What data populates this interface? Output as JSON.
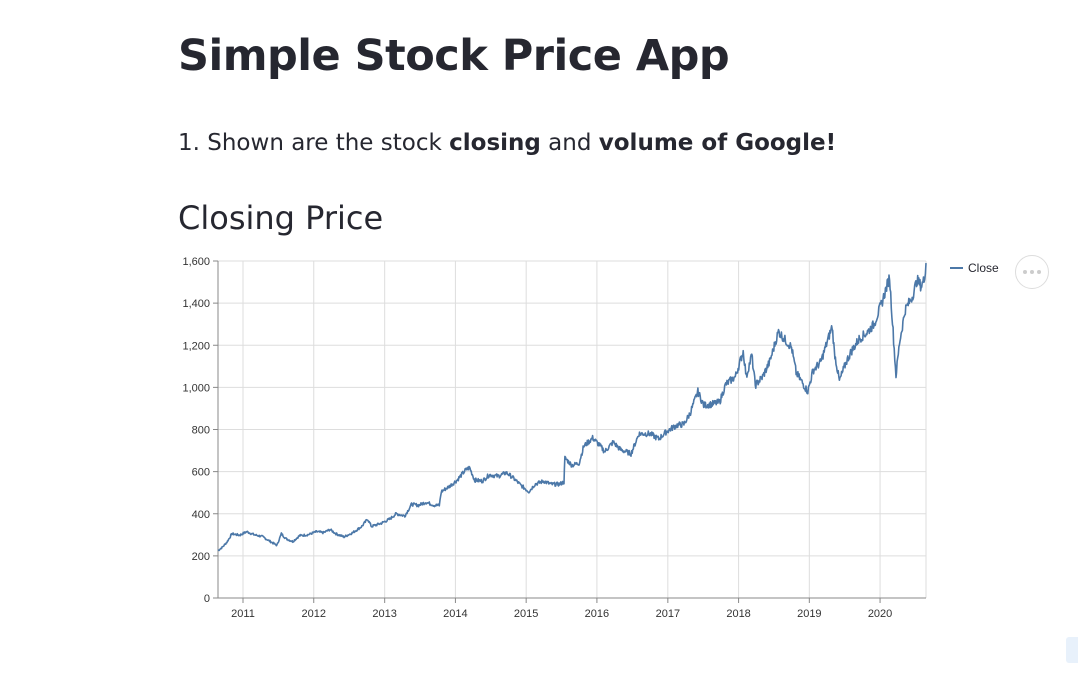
{
  "app": {
    "title": "Simple Stock Price App",
    "intro": {
      "prefix": "1. Shown are the stock ",
      "bold1": "closing",
      "middle": " and ",
      "bold2": "volume of Google!"
    },
    "subheader": "Closing Price"
  },
  "icons": {
    "actions_menu": "ellipsis-icon"
  },
  "colors": {
    "line": "#4c78a8",
    "text": "#262730",
    "grid": "#dddddd",
    "axis": "#888888"
  },
  "chart_data": {
    "type": "line",
    "title": "",
    "xlabel": "",
    "ylabel": "",
    "ylim": [
      0,
      1600
    ],
    "xlim": [
      "2010-08-25",
      "2020-08-25"
    ],
    "yticks": [
      0,
      200,
      400,
      600,
      800,
      1000,
      1200,
      1400,
      1600
    ],
    "ytick_labels": [
      "0",
      "200",
      "400",
      "600",
      "800",
      "1,000",
      "1,200",
      "1,400",
      "1,600"
    ],
    "xticks": [
      "2011",
      "2012",
      "2013",
      "2014",
      "2015",
      "2016",
      "2017",
      "2018",
      "2019",
      "2020"
    ],
    "grid": true,
    "legend_position": "top-right",
    "series": [
      {
        "name": "Close",
        "points": [
          [
            "2010-08-25",
            225
          ],
          [
            "2010-09-15",
            240
          ],
          [
            "2010-10-10",
            265
          ],
          [
            "2010-11-05",
            305
          ],
          [
            "2010-12-15",
            298
          ],
          [
            "2011-01-20",
            315
          ],
          [
            "2011-03-01",
            300
          ],
          [
            "2011-04-10",
            292
          ],
          [
            "2011-05-15",
            272
          ],
          [
            "2011-06-25",
            250
          ],
          [
            "2011-07-18",
            305
          ],
          [
            "2011-08-10",
            282
          ],
          [
            "2011-09-15",
            268
          ],
          [
            "2011-10-20",
            296
          ],
          [
            "2011-12-01",
            300
          ],
          [
            "2012-01-15",
            315
          ],
          [
            "2012-02-20",
            310
          ],
          [
            "2012-03-25",
            325
          ],
          [
            "2012-04-25",
            305
          ],
          [
            "2012-06-05",
            290
          ],
          [
            "2012-07-20",
            310
          ],
          [
            "2012-09-05",
            340
          ],
          [
            "2012-10-05",
            375
          ],
          [
            "2012-10-25",
            340
          ],
          [
            "2012-12-15",
            355
          ],
          [
            "2013-01-28",
            375
          ],
          [
            "2013-03-01",
            400
          ],
          [
            "2013-04-15",
            390
          ],
          [
            "2013-05-20",
            445
          ],
          [
            "2013-06-25",
            440
          ],
          [
            "2013-08-01",
            455
          ],
          [
            "2013-09-15",
            440
          ],
          [
            "2013-10-10",
            440
          ],
          [
            "2013-10-20",
            505
          ],
          [
            "2013-12-01",
            530
          ],
          [
            "2014-01-10",
            560
          ],
          [
            "2014-02-20",
            605
          ],
          [
            "2014-03-15",
            620
          ],
          [
            "2014-04-10",
            560
          ],
          [
            "2014-05-20",
            555
          ],
          [
            "2014-06-25",
            585
          ],
          [
            "2014-08-10",
            578
          ],
          [
            "2014-09-20",
            595
          ],
          [
            "2014-10-20",
            575
          ],
          [
            "2014-12-05",
            535
          ],
          [
            "2015-01-15",
            505
          ],
          [
            "2015-02-15",
            540
          ],
          [
            "2015-04-01",
            555
          ],
          [
            "2015-05-10",
            540
          ],
          [
            "2015-06-20",
            540
          ],
          [
            "2015-07-15",
            550
          ],
          [
            "2015-07-20",
            665
          ],
          [
            "2015-08-25",
            630
          ],
          [
            "2015-10-01",
            640
          ],
          [
            "2015-10-25",
            720
          ],
          [
            "2015-12-10",
            760
          ],
          [
            "2016-01-15",
            725
          ],
          [
            "2016-02-10",
            695
          ],
          [
            "2016-03-25",
            740
          ],
          [
            "2016-05-01",
            705
          ],
          [
            "2016-06-25",
            685
          ],
          [
            "2016-08-05",
            780
          ],
          [
            "2016-10-01",
            780
          ],
          [
            "2016-11-15",
            755
          ],
          [
            "2016-12-25",
            790
          ],
          [
            "2017-02-15",
            820
          ],
          [
            "2017-03-25",
            825
          ],
          [
            "2017-04-25",
            875
          ],
          [
            "2017-06-05",
            980
          ],
          [
            "2017-07-05",
            915
          ],
          [
            "2017-08-15",
            920
          ],
          [
            "2017-09-25",
            930
          ],
          [
            "2017-10-27",
            1015
          ],
          [
            "2017-12-15",
            1050
          ],
          [
            "2018-01-25",
            1170
          ],
          [
            "2018-02-10",
            1050
          ],
          [
            "2018-03-10",
            1155
          ],
          [
            "2018-03-28",
            1010
          ],
          [
            "2018-05-05",
            1050
          ],
          [
            "2018-06-10",
            1120
          ],
          [
            "2018-07-26",
            1265
          ],
          [
            "2018-08-25",
            1230
          ],
          [
            "2018-10-01",
            1190
          ],
          [
            "2018-10-25",
            1070
          ],
          [
            "2018-12-24",
            980
          ],
          [
            "2019-01-20",
            1080
          ],
          [
            "2019-03-01",
            1120
          ],
          [
            "2019-04-29",
            1290
          ],
          [
            "2019-05-10",
            1170
          ],
          [
            "2019-06-05",
            1030
          ],
          [
            "2019-07-10",
            1120
          ],
          [
            "2019-08-05",
            1170
          ],
          [
            "2019-09-15",
            1230
          ],
          [
            "2019-10-25",
            1260
          ],
          [
            "2019-12-01",
            1300
          ],
          [
            "2020-01-10",
            1400
          ],
          [
            "2020-02-19",
            1525
          ],
          [
            "2020-03-05",
            1310
          ],
          [
            "2020-03-23",
            1055
          ],
          [
            "2020-04-10",
            1210
          ],
          [
            "2020-05-10",
            1370
          ],
          [
            "2020-06-15",
            1430
          ],
          [
            "2020-07-10",
            1510
          ],
          [
            "2020-07-31",
            1480
          ],
          [
            "2020-08-15",
            1510
          ],
          [
            "2020-08-25",
            1590
          ]
        ]
      }
    ]
  }
}
